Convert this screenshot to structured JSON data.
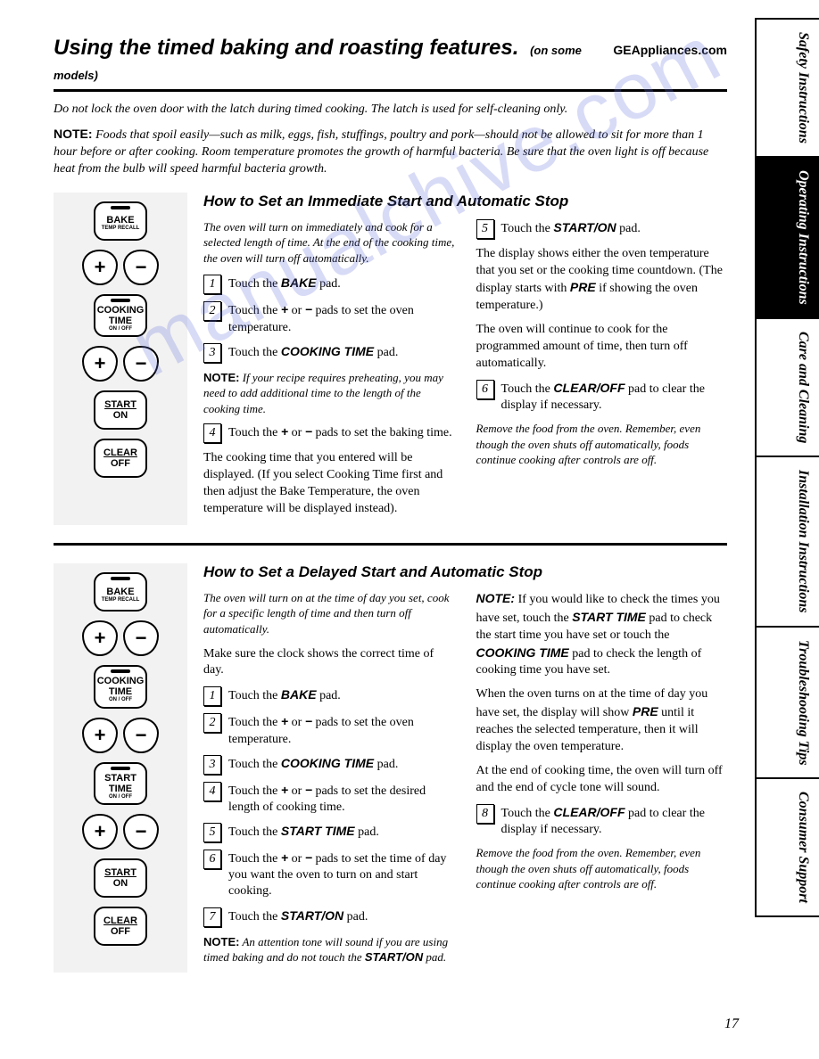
{
  "header": {
    "title": "Using the timed baking and roasting features.",
    "models_note": "(on some models)",
    "brand_url": "GEAppliances.com"
  },
  "intro": {
    "warning": "Do not lock the oven door with the latch during timed cooking. The latch is used for self-cleaning only.",
    "note_label": "NOTE:",
    "note_text": " Foods that spoil easily—such as milk, eggs, fish, stuffings, poultry and pork—should not be allowed to sit for more than 1 hour before or after cooking. Room temperature promotes the growth of harmful bacteria. Be sure that the oven light is off because heat from the bulb will speed harmful bacteria growth."
  },
  "pads": {
    "bake": "BAKE",
    "bake_sub": "TEMP RECALL",
    "cooking_time": "COOKING TIME",
    "cooking_time_sub": "ON / OFF",
    "start_time": "START TIME",
    "start_time_sub": "ON / OFF",
    "start_on_1": "START",
    "start_on_2": "ON",
    "clear_off_1": "CLEAR",
    "clear_off_2": "OFF",
    "plus": "+",
    "minus": "−"
  },
  "section1": {
    "heading": "How to Set an Immediate Start and Automatic Stop",
    "intro": "The oven will turn on immediately and cook for a selected length of time. At the end of the cooking time, the oven will turn off automatically.",
    "steps_left": [
      "Touch the <b><i>BAKE</i></b> pad.",
      "Touch the <b><i>+</i></b> or <b><i>−</i></b> pads to set the oven temperature.",
      "Touch the <b><i>COOKING TIME</i></b> pad."
    ],
    "note1_label": "NOTE:",
    "note1_text": " If your recipe requires preheating, you may need to add additional time to the length of the cooking time.",
    "step4": "Touch the <b><i>+</i></b> or <b><i>−</i></b> pads to set the baking time.",
    "after4": "The cooking time that you entered will be displayed. (If you select Cooking Time first and then adjust the Bake Temperature, the oven temperature will be displayed instead).",
    "step5": "Touch the <b><i>START/ON</i></b> pad.",
    "right_p1": "The display shows either the oven temperature that you set or the cooking time countdown. (The display starts with <b><i>PRE</i></b> if showing the oven temperature.)",
    "right_p2": "The oven will continue to cook for the programmed amount of time, then turn off automatically.",
    "step6": "Touch the <b><i>CLEAR/OFF</i></b> pad to clear the display if necessary.",
    "remove": "Remove the food from the oven. Remember, even though the oven shuts off automatically, foods continue cooking after controls are off."
  },
  "section2": {
    "heading": "How to Set a Delayed Start and Automatic Stop",
    "intro": "The oven will turn on at the time of day you set, cook for a specific length of time and then turn off automatically.",
    "pre": "Make sure the clock shows the correct time of day.",
    "steps": [
      "Touch the <b><i>BAKE</i></b> pad.",
      "Touch the <b><i>+</i></b> or <b><i>−</i></b> pads to set the oven temperature.",
      "Touch the <b><i>COOKING TIME</i></b> pad.",
      "Touch the <b><i>+</i></b> or <b><i>−</i></b> pads to set the desired length of cooking time.",
      "Touch the <b><i>START TIME</i></b> pad.",
      "Touch the <b><i>+</i></b> or <b><i>−</i></b> pads to set the time of day you want the oven to turn on and start cooking.",
      "Touch the <b><i>START/ON</i></b> pad."
    ],
    "note_bottom_label": "NOTE:",
    "note_bottom_text": " An attention tone will sound if you are using timed baking and do not touch the <b><i>START/ON</i></b> pad.",
    "right_note_label": "NOTE:",
    "right_note_text": " If you would like to check the times you have set, touch the <b><i>START TIME</i></b> pad to check the start time you have set or touch the <b><i>COOKING TIME</i></b> pad to check the length of cooking time you have set.",
    "right_p1": "When the oven turns on at the time of day you have set, the display will show <b><i>PRE</i></b> until it reaches the selected temperature, then it will display the oven temperature.",
    "right_p2": "At the end of cooking time, the oven will turn off and the end of cycle tone will sound.",
    "step8": "Touch the <b><i>CLEAR/OFF</i></b> pad to clear the display if necessary.",
    "remove": "Remove the food from the oven. Remember, even though the oven shuts off automatically, foods continue cooking after controls are off."
  },
  "tabs": [
    "Safety Instructions",
    "Operating Instructions",
    "Care and Cleaning",
    "Installation Instructions",
    "Troubleshooting Tips",
    "Consumer Support"
  ],
  "active_tab": 1,
  "page_number": "17",
  "watermark": "manualchive.com"
}
